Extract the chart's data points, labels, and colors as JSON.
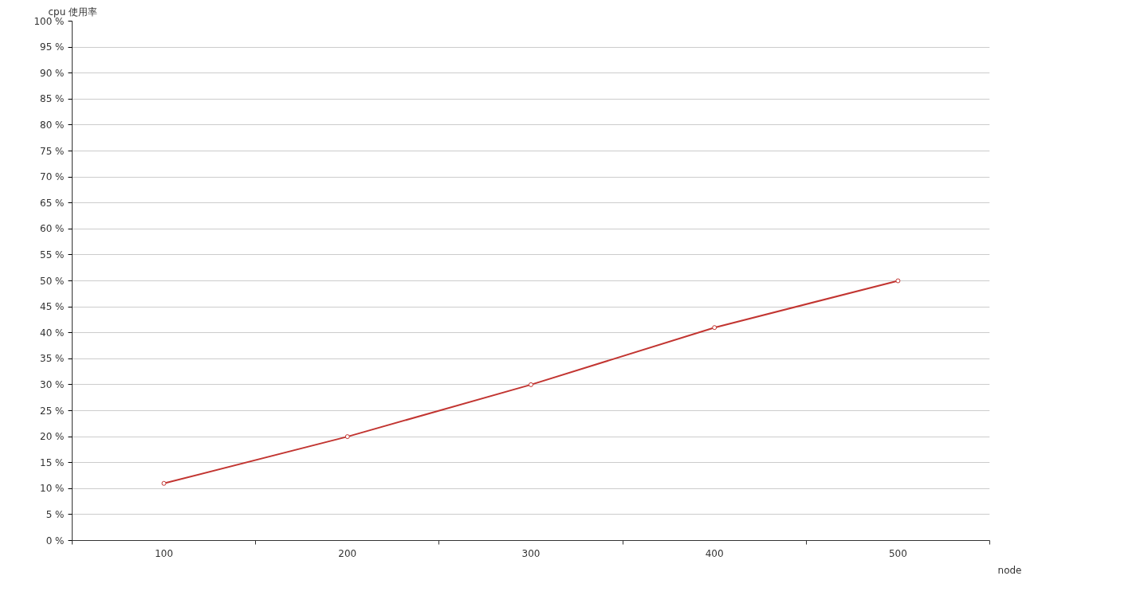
{
  "chart_data": {
    "type": "line",
    "xlabel": "node",
    "ylabel": "cpu 使用率",
    "categories": [
      "100",
      "200",
      "300",
      "400",
      "500"
    ],
    "series": [
      {
        "color": "#c23531",
        "values": [
          11,
          20,
          30,
          41,
          50
        ]
      }
    ],
    "ylim": [
      0,
      100
    ],
    "yticks": [
      {
        "value": 0,
        "label": "0 %"
      },
      {
        "value": 5,
        "label": "5 %"
      },
      {
        "value": 10,
        "label": "10 %"
      },
      {
        "value": 15,
        "label": "15 %"
      },
      {
        "value": 20,
        "label": "20 %"
      },
      {
        "value": 25,
        "label": "25 %"
      },
      {
        "value": 30,
        "label": "30 %"
      },
      {
        "value": 35,
        "label": "35 %"
      },
      {
        "value": 40,
        "label": "40 %"
      },
      {
        "value": 45,
        "label": "45 %"
      },
      {
        "value": 50,
        "label": "50 %"
      },
      {
        "value": 55,
        "label": "55 %"
      },
      {
        "value": 60,
        "label": "60 %"
      },
      {
        "value": 65,
        "label": "65 %"
      },
      {
        "value": 70,
        "label": "70 %"
      },
      {
        "value": 75,
        "label": "75 %"
      },
      {
        "value": 80,
        "label": "80 %"
      },
      {
        "value": 85,
        "label": "85 %"
      },
      {
        "value": 90,
        "label": "90 %"
      },
      {
        "value": 95,
        "label": "95 %"
      },
      {
        "value": 100,
        "label": "100 %"
      }
    ],
    "grid": "y",
    "marker": "circle",
    "line_style": "solid"
  }
}
